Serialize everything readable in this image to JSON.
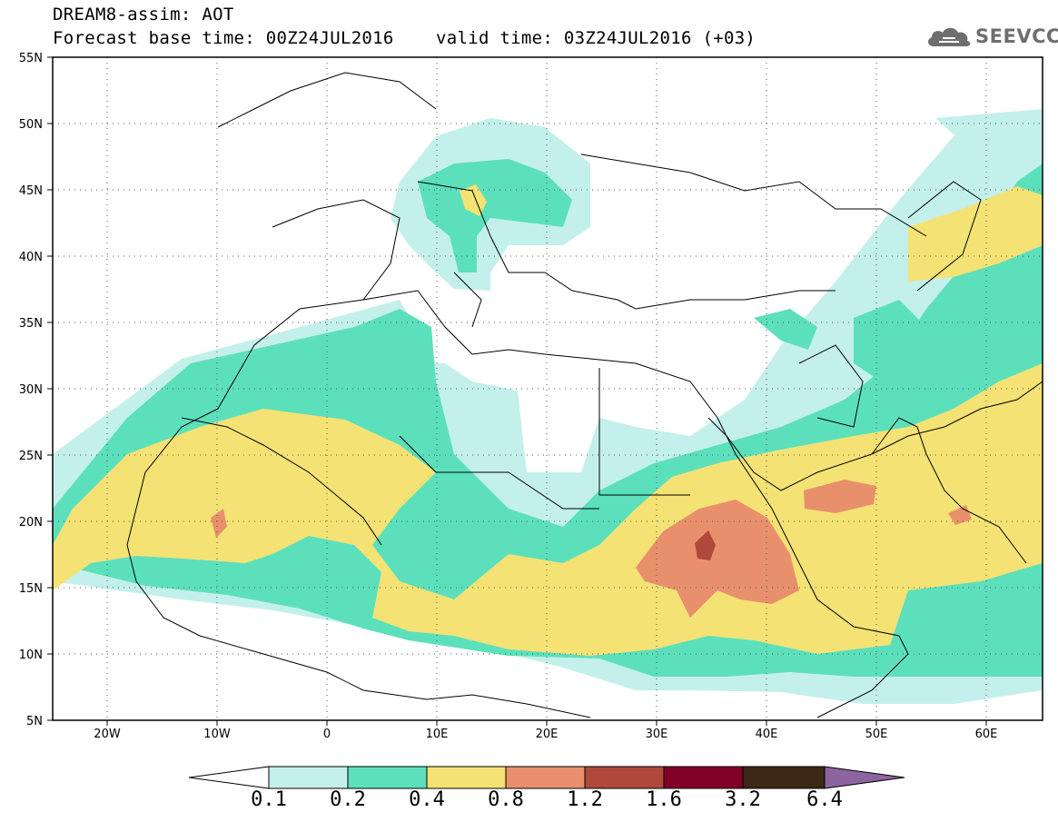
{
  "header": {
    "title": "DREAM8-assim: AOT",
    "base_time": "Forecast base time: 00Z24JUL2016",
    "valid_time": "valid time: 03Z24JUL2016 (+03)",
    "logo_text": "SEEVCCC",
    "logo_icon": "cloud-icon"
  },
  "map": {
    "lon_range": [
      -25,
      65
    ],
    "lat_range": [
      5,
      55
    ],
    "lat_labels": [
      "55N",
      "50N",
      "45N",
      "40N",
      "35N",
      "30N",
      "25N",
      "20N",
      "15N",
      "10N",
      "5N"
    ],
    "lon_labels": [
      "20W",
      "10W",
      "0",
      "10E",
      "20E",
      "30E",
      "40E",
      "50E",
      "60E"
    ],
    "grid": "dotted"
  },
  "legend": {
    "labels": [
      "0.1",
      "0.2",
      "0.4",
      "0.8",
      "1.2",
      "1.6",
      "3.2",
      "6.4"
    ],
    "colors": [
      "#c4f0ec",
      "#5ce0bc",
      "#f4e274",
      "#e8906c",
      "#b0483c",
      "#800028",
      "#3c2814",
      "#8c64a0"
    ],
    "under_color": "#ffffff",
    "over_color": "#8c64a0"
  }
}
